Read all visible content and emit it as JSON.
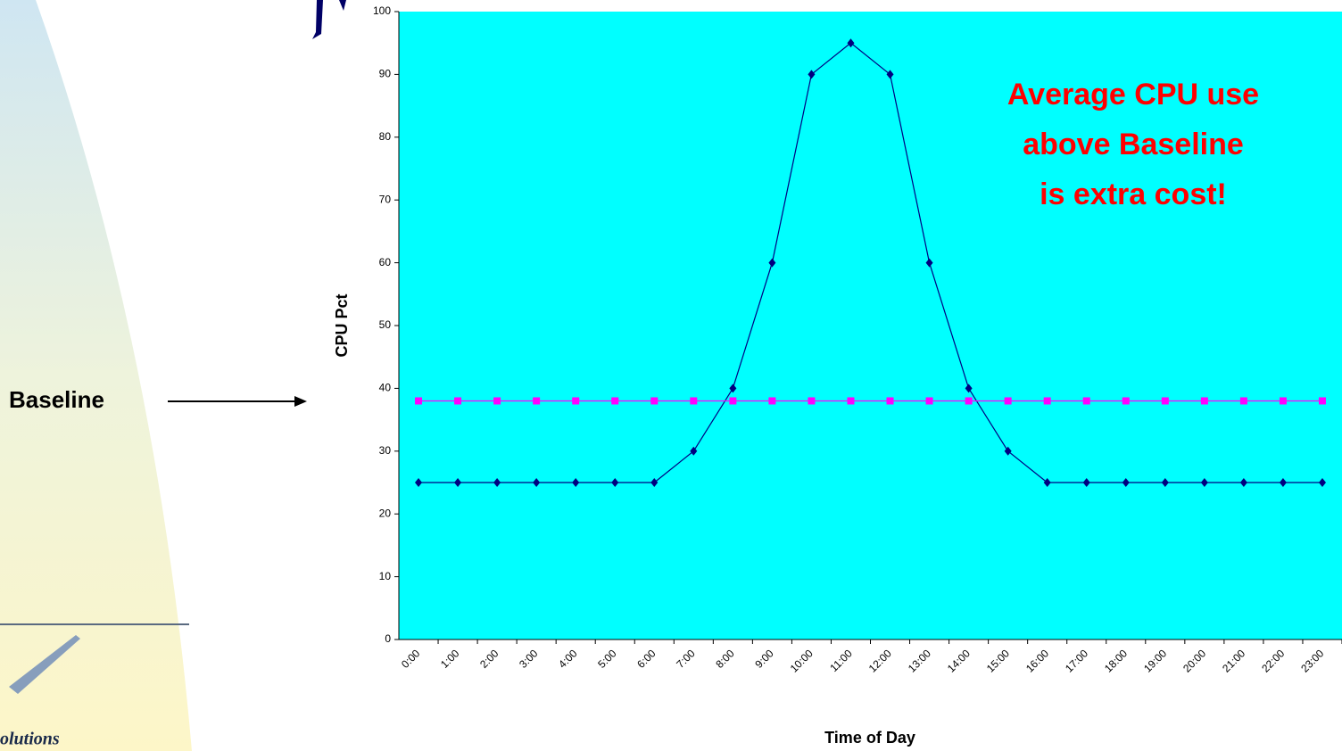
{
  "chart_data": {
    "type": "line",
    "categories": [
      "0:00",
      "1:00",
      "2:00",
      "3:00",
      "4:00",
      "5:00",
      "6:00",
      "7:00",
      "8:00",
      "9:00",
      "10:00",
      "11:00",
      "12:00",
      "13:00",
      "14:00",
      "15:00",
      "16:00",
      "17:00",
      "18:00",
      "19:00",
      "20:00",
      "21:00",
      "22:00",
      "23:00"
    ],
    "series": [
      {
        "color": "#000080",
        "marker": "diamond",
        "values": [
          25,
          25,
          25,
          25,
          25,
          25,
          25,
          30,
          40,
          60,
          90,
          95,
          90,
          60,
          40,
          30,
          25,
          25,
          25,
          25,
          25,
          25,
          25,
          25
        ]
      },
      {
        "color": "#ff00ff",
        "marker": "square",
        "values": [
          38,
          38,
          38,
          38,
          38,
          38,
          38,
          38,
          38,
          38,
          38,
          38,
          38,
          38,
          38,
          38,
          38,
          38,
          38,
          38,
          38,
          38,
          38,
          38
        ]
      }
    ],
    "ylim": [
      0,
      100
    ],
    "yticks": [
      0,
      10,
      20,
      30,
      40,
      50,
      60,
      70,
      80,
      90,
      100
    ],
    "ylabel": "CPU Pct",
    "xlabel": "Time of Day",
    "plot_background": "#00ffff",
    "annotation_lines": [
      "Average CPU use",
      "above Baseline",
      "is extra cost!"
    ],
    "baseline_label": "Baseline",
    "logo_text": "olutions"
  }
}
